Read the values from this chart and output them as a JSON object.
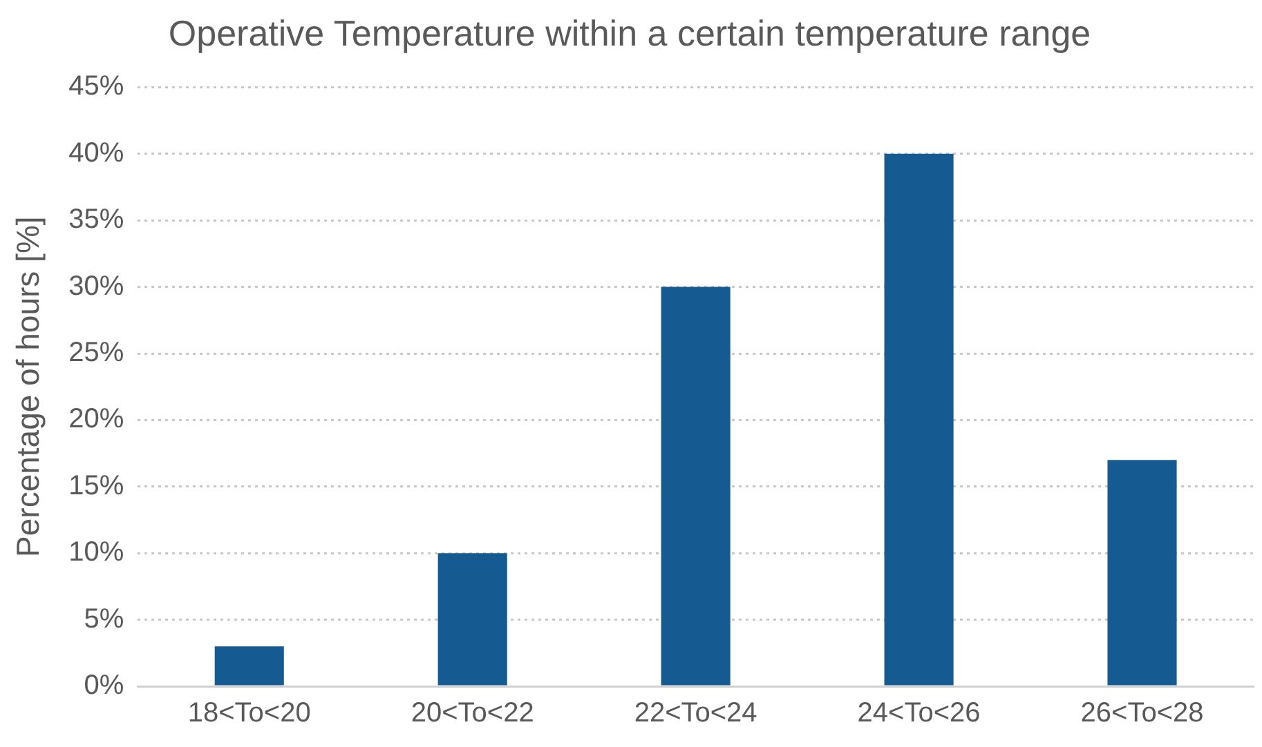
{
  "chart_data": {
    "type": "bar",
    "title": "Operative Temperature within a certain temperature range",
    "ylabel": "Percentage of hours [%]",
    "categories": [
      "18<To<20",
      "20<To<22",
      "22<To<24",
      "24<To<26",
      "26<To<28"
    ],
    "values": [
      3,
      10,
      30,
      40,
      17
    ],
    "color": "#155a91",
    "ylim": [
      0,
      45
    ],
    "yticks": [
      {
        "value": 0,
        "label": "0%"
      },
      {
        "value": 5,
        "label": "5%"
      },
      {
        "value": 10,
        "label": "10%"
      },
      {
        "value": 15,
        "label": "15%"
      },
      {
        "value": 20,
        "label": "20%"
      },
      {
        "value": 25,
        "label": "25%"
      },
      {
        "value": 30,
        "label": "30%"
      },
      {
        "value": 35,
        "label": "35%"
      },
      {
        "value": 40,
        "label": "40%"
      },
      {
        "value": 45,
        "label": "45%"
      }
    ],
    "grid": "y",
    "legend": false
  }
}
